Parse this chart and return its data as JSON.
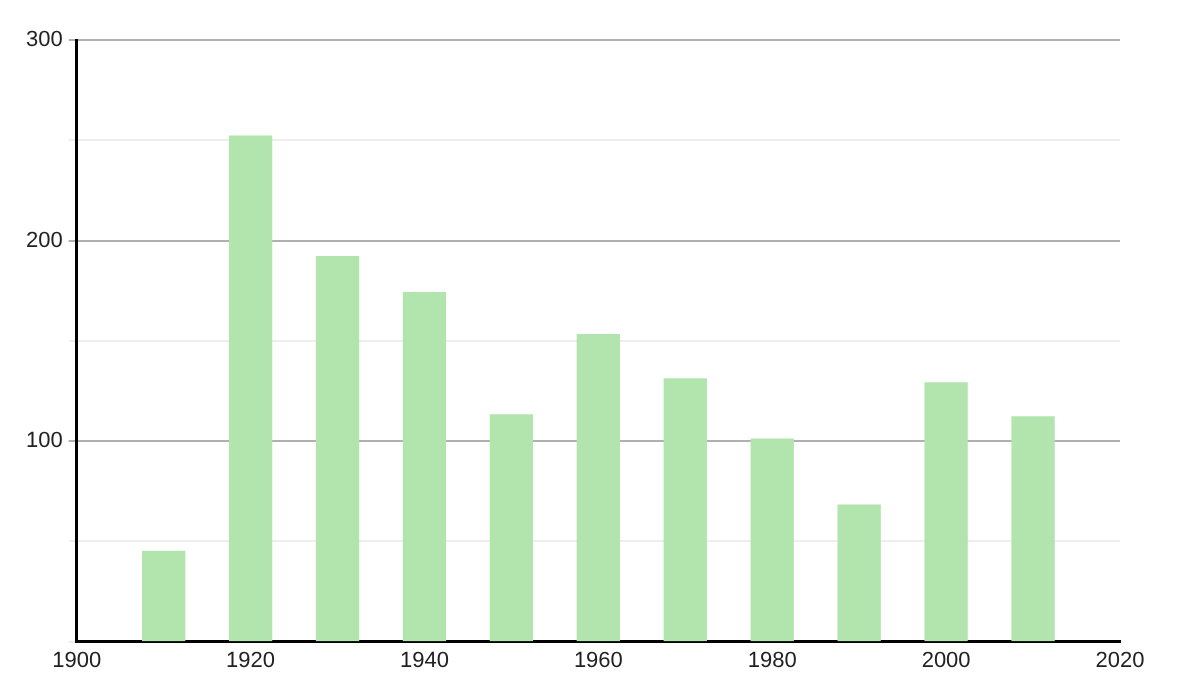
{
  "chart_data": {
    "type": "bar",
    "x": [
      1910,
      1920,
      1930,
      1940,
      1950,
      1960,
      1970,
      1980,
      1990,
      2000,
      2010
    ],
    "values": [
      45,
      252,
      192,
      174,
      113,
      153,
      131,
      101,
      68,
      129,
      112
    ],
    "color": "#b1e5ad",
    "xlim": [
      1900,
      2020
    ],
    "xticks": [
      1900,
      1920,
      1940,
      1960,
      1980,
      2000,
      2020
    ],
    "ylim": [
      0,
      300
    ],
    "yticks": [
      {
        "value": 0,
        "label": null
      },
      {
        "value": 50,
        "label": null
      },
      100,
      {
        "value": 150,
        "label": null
      },
      200,
      {
        "value": 250,
        "label": null
      },
      300
    ],
    "grid": "y"
  }
}
